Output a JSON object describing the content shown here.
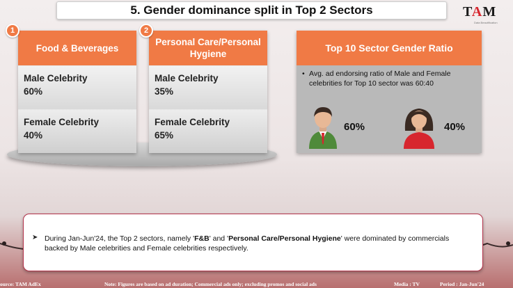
{
  "title": "5. Gender dominance split in Top 2 Sectors",
  "logo": {
    "mark_t": "T",
    "mark_a": "A",
    "mark_m": "M",
    "tagline": "Data Beautification"
  },
  "sectors": [
    {
      "badge": "1",
      "name": "Food & Beverages",
      "male_label": "Male Celebrity",
      "male_value": "60%",
      "female_label": "Female Celebrity",
      "female_value": "40%"
    },
    {
      "badge": "2",
      "name": "Personal Care/Personal Hygiene",
      "male_label": "Male Celebrity",
      "male_value": "35%",
      "female_label": "Female Celebrity",
      "female_value": "65%"
    }
  ],
  "ratio": {
    "title": "Top 10 Sector Gender Ratio",
    "text": "Avg. ad endorsing ratio of Male and Female celebrities for Top 10 sector was 60:40",
    "male_pct": "60%",
    "female_pct": "40%"
  },
  "summary": {
    "prefix": "During Jan-Jun'24, the Top 2 sectors, namely '",
    "s1": "F&B",
    "mid": "' and '",
    "s2": "Personal Care/Personal Hygiene",
    "suffix": "' were dominated by commercials backed by Male celebrities and Female celebrities respectively."
  },
  "footer": {
    "source": "ource: TAM AdEx",
    "note": "Note: Figures are based on ad duration; Commercial ads only; excluding promos and social ads",
    "media": "Media : TV",
    "period": "Period : Jan-Jun'24"
  },
  "colors": {
    "accent": "#f07a45",
    "brand_red": "#d7262e",
    "card_border": "#b3324a"
  }
}
